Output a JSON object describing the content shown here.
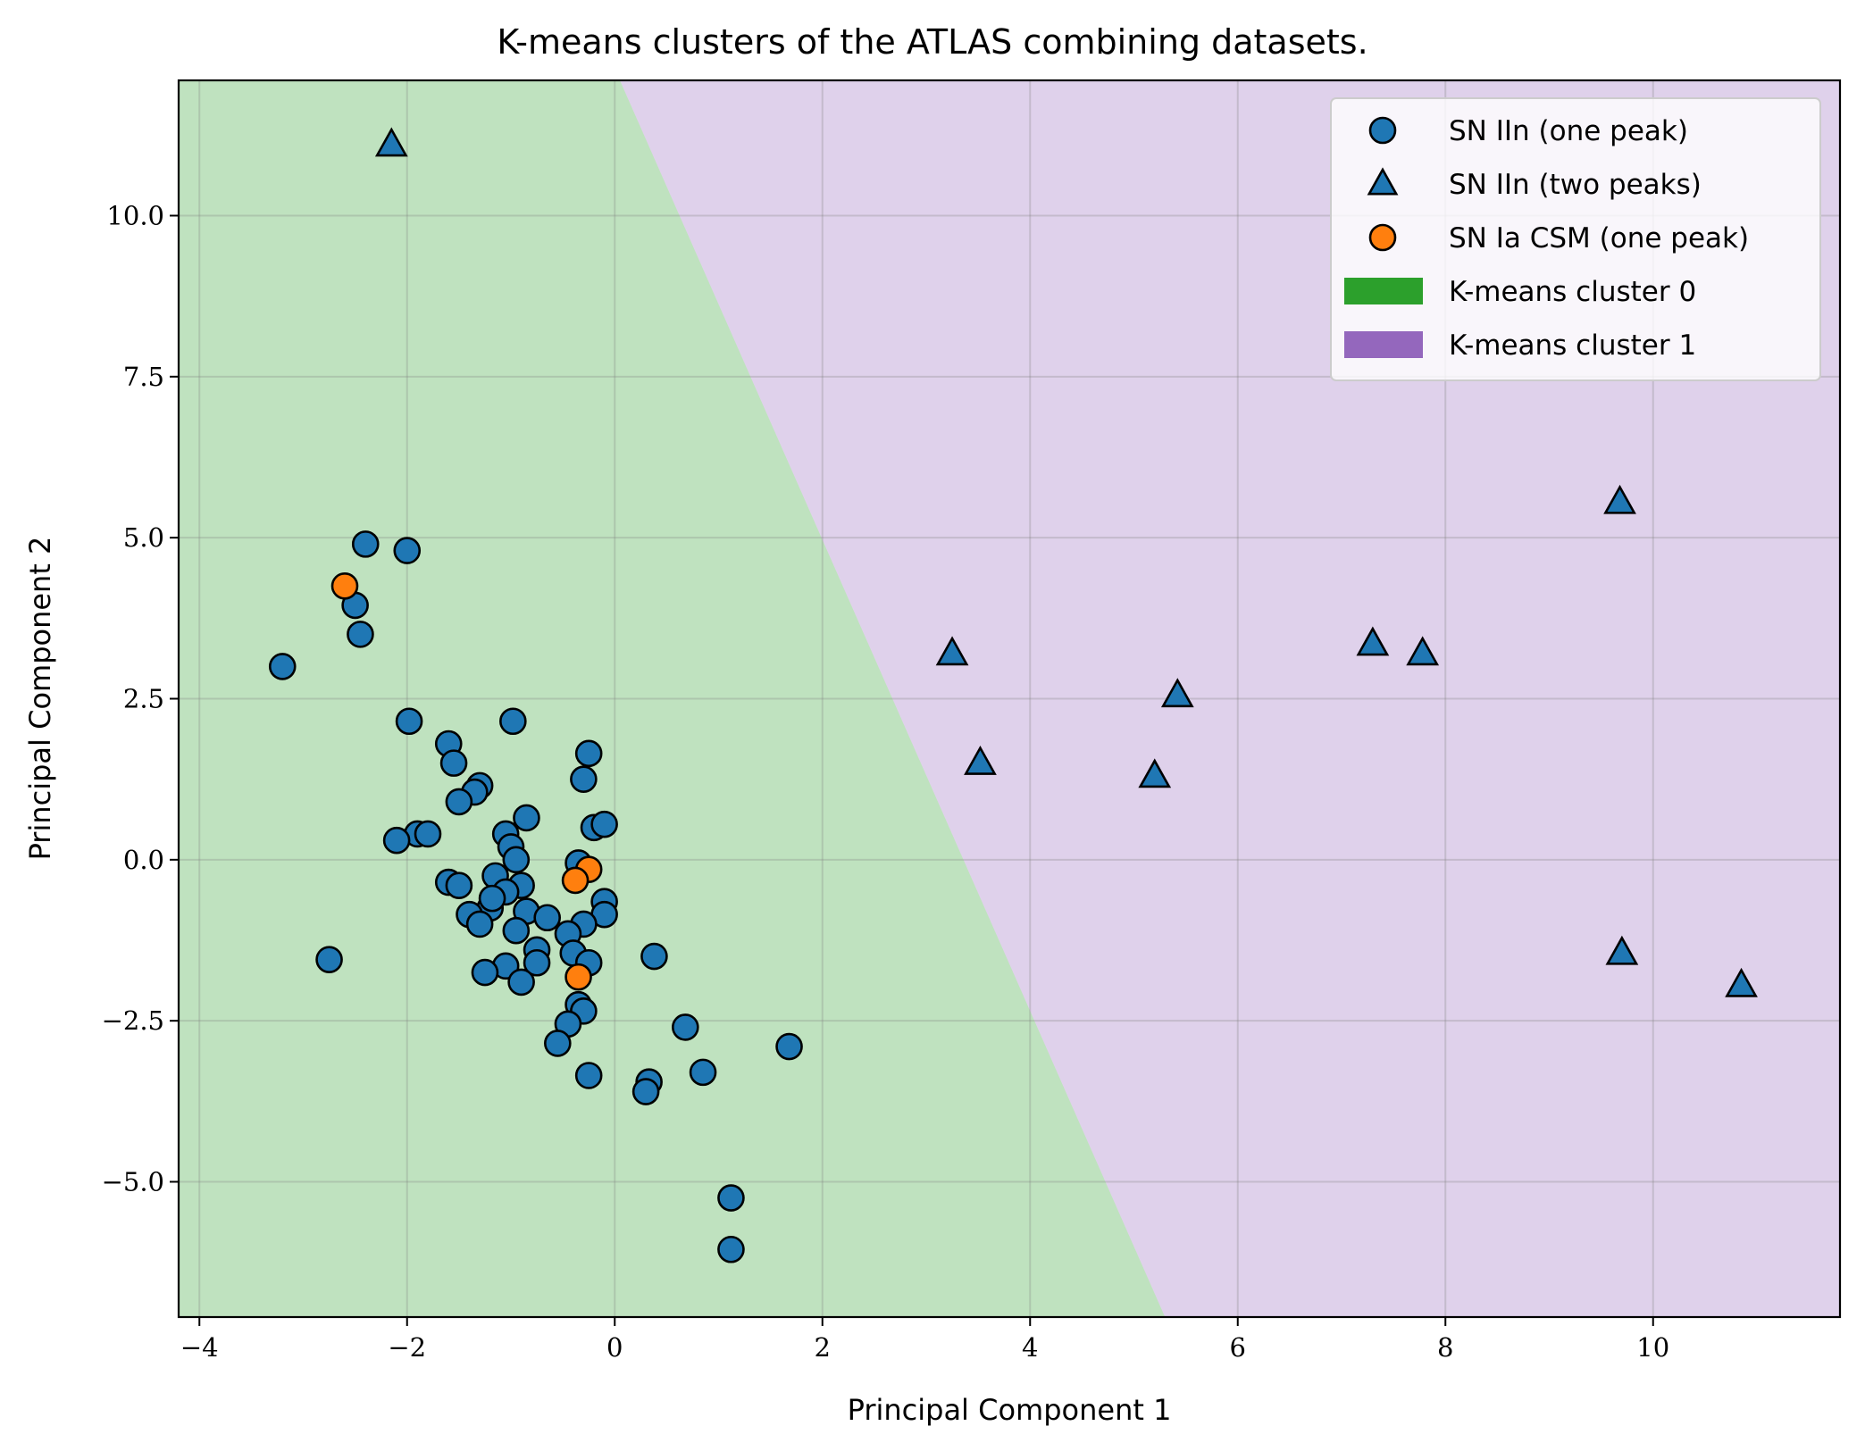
{
  "chart_data": {
    "type": "scatter",
    "title": "K-means clusters of the ATLAS combining datasets.",
    "xlabel": "Principal Component 1",
    "ylabel": "Principal Component 2",
    "xlim": [
      -4.2,
      11.8
    ],
    "ylim": [
      -7.1,
      12.1
    ],
    "xticks": [
      -4,
      -2,
      0,
      2,
      4,
      6,
      8,
      10
    ],
    "xtick_labels": [
      "−4",
      "−2",
      "0",
      "2",
      "4",
      "6",
      "8",
      "10"
    ],
    "yticks": [
      -5.0,
      -2.5,
      0.0,
      2.5,
      5.0,
      7.5,
      10.0
    ],
    "ytick_labels": [
      "−5.0",
      "−2.5",
      "0.0",
      "2.5",
      "5.0",
      "7.5",
      "10.0"
    ],
    "grid": true,
    "legend_position": "top-right",
    "regions": [
      {
        "name": "K-means cluster 0",
        "color": "#2ca02c",
        "fill_alpha": 0.3
      },
      {
        "name": "K-means cluster 1",
        "color": "#9467bd",
        "fill_alpha": 0.3
      }
    ],
    "boundary_line": {
      "points": [
        [
          0.05,
          12.1
        ],
        [
          5.3,
          -7.1
        ]
      ]
    },
    "series": [
      {
        "name": "SN IIn (one peak)",
        "marker": "circle",
        "color": "#1f77b4",
        "points": [
          [
            -2.4,
            4.9
          ],
          [
            -2.0,
            4.8
          ],
          [
            -2.5,
            3.95
          ],
          [
            -2.45,
            3.5
          ],
          [
            -3.2,
            3.0
          ],
          [
            -1.98,
            2.15
          ],
          [
            -0.98,
            2.15
          ],
          [
            -1.6,
            1.8
          ],
          [
            -1.55,
            1.5
          ],
          [
            -0.25,
            1.65
          ],
          [
            -0.3,
            1.25
          ],
          [
            -1.3,
            1.15
          ],
          [
            -1.35,
            1.05
          ],
          [
            -1.5,
            0.9
          ],
          [
            -0.85,
            0.65
          ],
          [
            -0.2,
            0.5
          ],
          [
            -0.1,
            0.55
          ],
          [
            -1.9,
            0.4
          ],
          [
            -1.8,
            0.4
          ],
          [
            -2.1,
            0.3
          ],
          [
            -1.05,
            0.4
          ],
          [
            -1.0,
            0.2
          ],
          [
            -0.95,
            0.0
          ],
          [
            -0.35,
            -0.05
          ],
          [
            -1.6,
            -0.35
          ],
          [
            -1.5,
            -0.4
          ],
          [
            -1.15,
            -0.25
          ],
          [
            -0.9,
            -0.4
          ],
          [
            -1.05,
            -0.5
          ],
          [
            -0.1,
            -0.65
          ],
          [
            -1.2,
            -0.75
          ],
          [
            -0.85,
            -0.8
          ],
          [
            -1.4,
            -0.85
          ],
          [
            -1.3,
            -1.0
          ],
          [
            -0.1,
            -0.85
          ],
          [
            -0.65,
            -0.9
          ],
          [
            -0.3,
            -1.0
          ],
          [
            -0.95,
            -1.1
          ],
          [
            -0.45,
            -1.15
          ],
          [
            -1.18,
            -0.6
          ],
          [
            -0.75,
            -1.4
          ],
          [
            -0.4,
            -1.45
          ],
          [
            -0.25,
            -1.6
          ],
          [
            -0.75,
            -1.6
          ],
          [
            -1.05,
            -1.65
          ],
          [
            -1.25,
            -1.75
          ],
          [
            -0.9,
            -1.9
          ],
          [
            0.38,
            -1.5
          ],
          [
            -2.75,
            -1.55
          ],
          [
            -0.35,
            -2.25
          ],
          [
            -0.3,
            -2.35
          ],
          [
            -0.45,
            -2.55
          ],
          [
            -0.55,
            -2.85
          ],
          [
            0.68,
            -2.6
          ],
          [
            1.68,
            -2.9
          ],
          [
            -0.25,
            -3.35
          ],
          [
            0.33,
            -3.45
          ],
          [
            0.85,
            -3.3
          ],
          [
            0.3,
            -3.6
          ],
          [
            1.12,
            -5.25
          ],
          [
            1.12,
            -6.05
          ]
        ]
      },
      {
        "name": "SN IIn (two peaks)",
        "marker": "triangle",
        "color": "#1f77b4",
        "points": [
          [
            -2.15,
            11.1
          ],
          [
            9.68,
            5.55
          ],
          [
            3.25,
            3.2
          ],
          [
            7.3,
            3.35
          ],
          [
            7.78,
            3.2
          ],
          [
            5.42,
            2.55
          ],
          [
            3.52,
            1.5
          ],
          [
            5.2,
            1.3
          ],
          [
            9.7,
            -1.45
          ],
          [
            10.85,
            -1.95
          ]
        ]
      },
      {
        "name": "SN Ia CSM (one peak)",
        "marker": "circle",
        "color": "#ff7f0e",
        "points": [
          [
            -2.6,
            4.25
          ],
          [
            -0.25,
            -0.15
          ],
          [
            -0.38,
            -0.32
          ],
          [
            -0.35,
            -1.82
          ]
        ]
      }
    ]
  }
}
